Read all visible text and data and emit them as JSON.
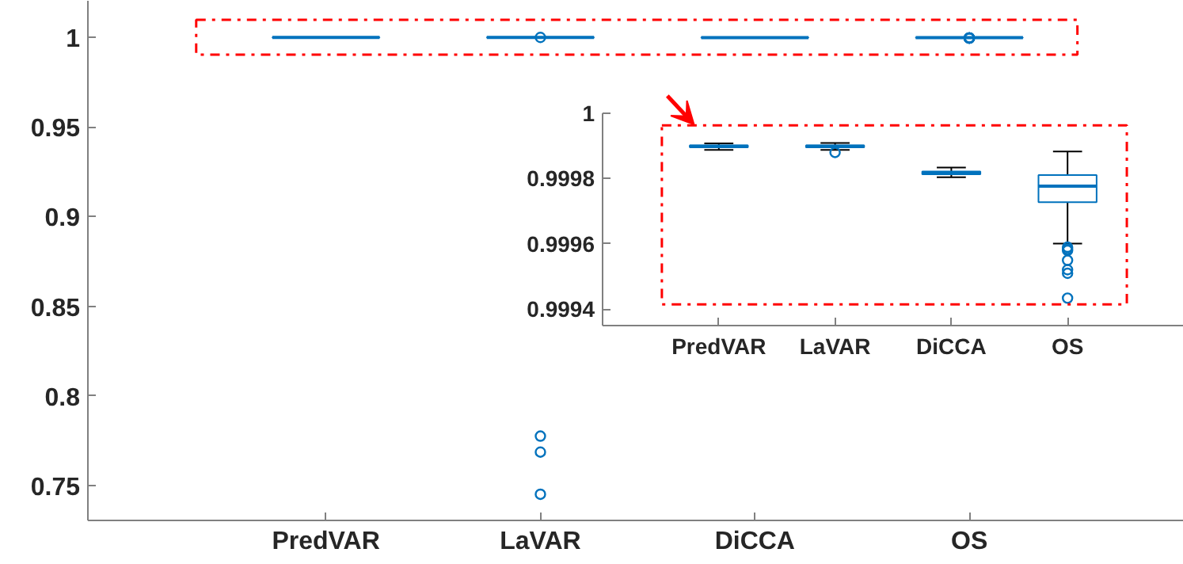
{
  "chart_data": [
    {
      "type": "box",
      "categories": [
        "PredVAR",
        "LaVAR",
        "DiCCA",
        "OS"
      ],
      "ylim": [
        0.7306,
        1.0203
      ],
      "yticks": [
        0.75,
        0.8,
        0.85,
        0.9,
        0.95,
        1
      ],
      "boxes": [
        {
          "low": 0.999888,
          "q1": 0.999896,
          "median": 0.999899,
          "q3": 0.999902,
          "high": 0.999908
        },
        {
          "low": 0.999888,
          "q1": 0.999896,
          "median": 0.999899,
          "q3": 0.999902,
          "high": 0.999909,
          "outliers": [
            0.99988,
            0.7776,
            0.7687,
            0.7452
          ]
        },
        {
          "low": 0.999804,
          "q1": 0.999813,
          "median": 0.999817,
          "q3": 0.999822,
          "high": 0.999834
        },
        {
          "low": 0.999601,
          "q1": 0.999728,
          "median": 0.999777,
          "q3": 0.999811,
          "high": 0.999883,
          "outliers": [
            0.99959,
            0.999584,
            0.99958,
            0.99955,
            0.999521,
            0.99951,
            0.999434
          ]
        }
      ]
    },
    {
      "type": "box",
      "categories": [
        "PredVAR",
        "LaVAR",
        "DiCCA",
        "OS"
      ],
      "ylim": [
        0.99935,
        1.0
      ],
      "yticks": [
        0.9994,
        0.9996,
        0.9998,
        1
      ],
      "boxes": [
        {
          "low": 0.999888,
          "q1": 0.999896,
          "median": 0.999899,
          "q3": 0.999902,
          "high": 0.999908
        },
        {
          "low": 0.999888,
          "q1": 0.999896,
          "median": 0.999899,
          "q3": 0.999902,
          "high": 0.999909,
          "outliers": [
            0.99988
          ]
        },
        {
          "low": 0.999804,
          "q1": 0.999813,
          "median": 0.999817,
          "q3": 0.999822,
          "high": 0.999834
        },
        {
          "low": 0.999601,
          "q1": 0.999728,
          "median": 0.999777,
          "q3": 0.999811,
          "high": 0.999883,
          "outliers": [
            0.99959,
            0.999584,
            0.99958,
            0.99955,
            0.999521,
            0.99951,
            0.999434
          ]
        }
      ]
    }
  ]
}
